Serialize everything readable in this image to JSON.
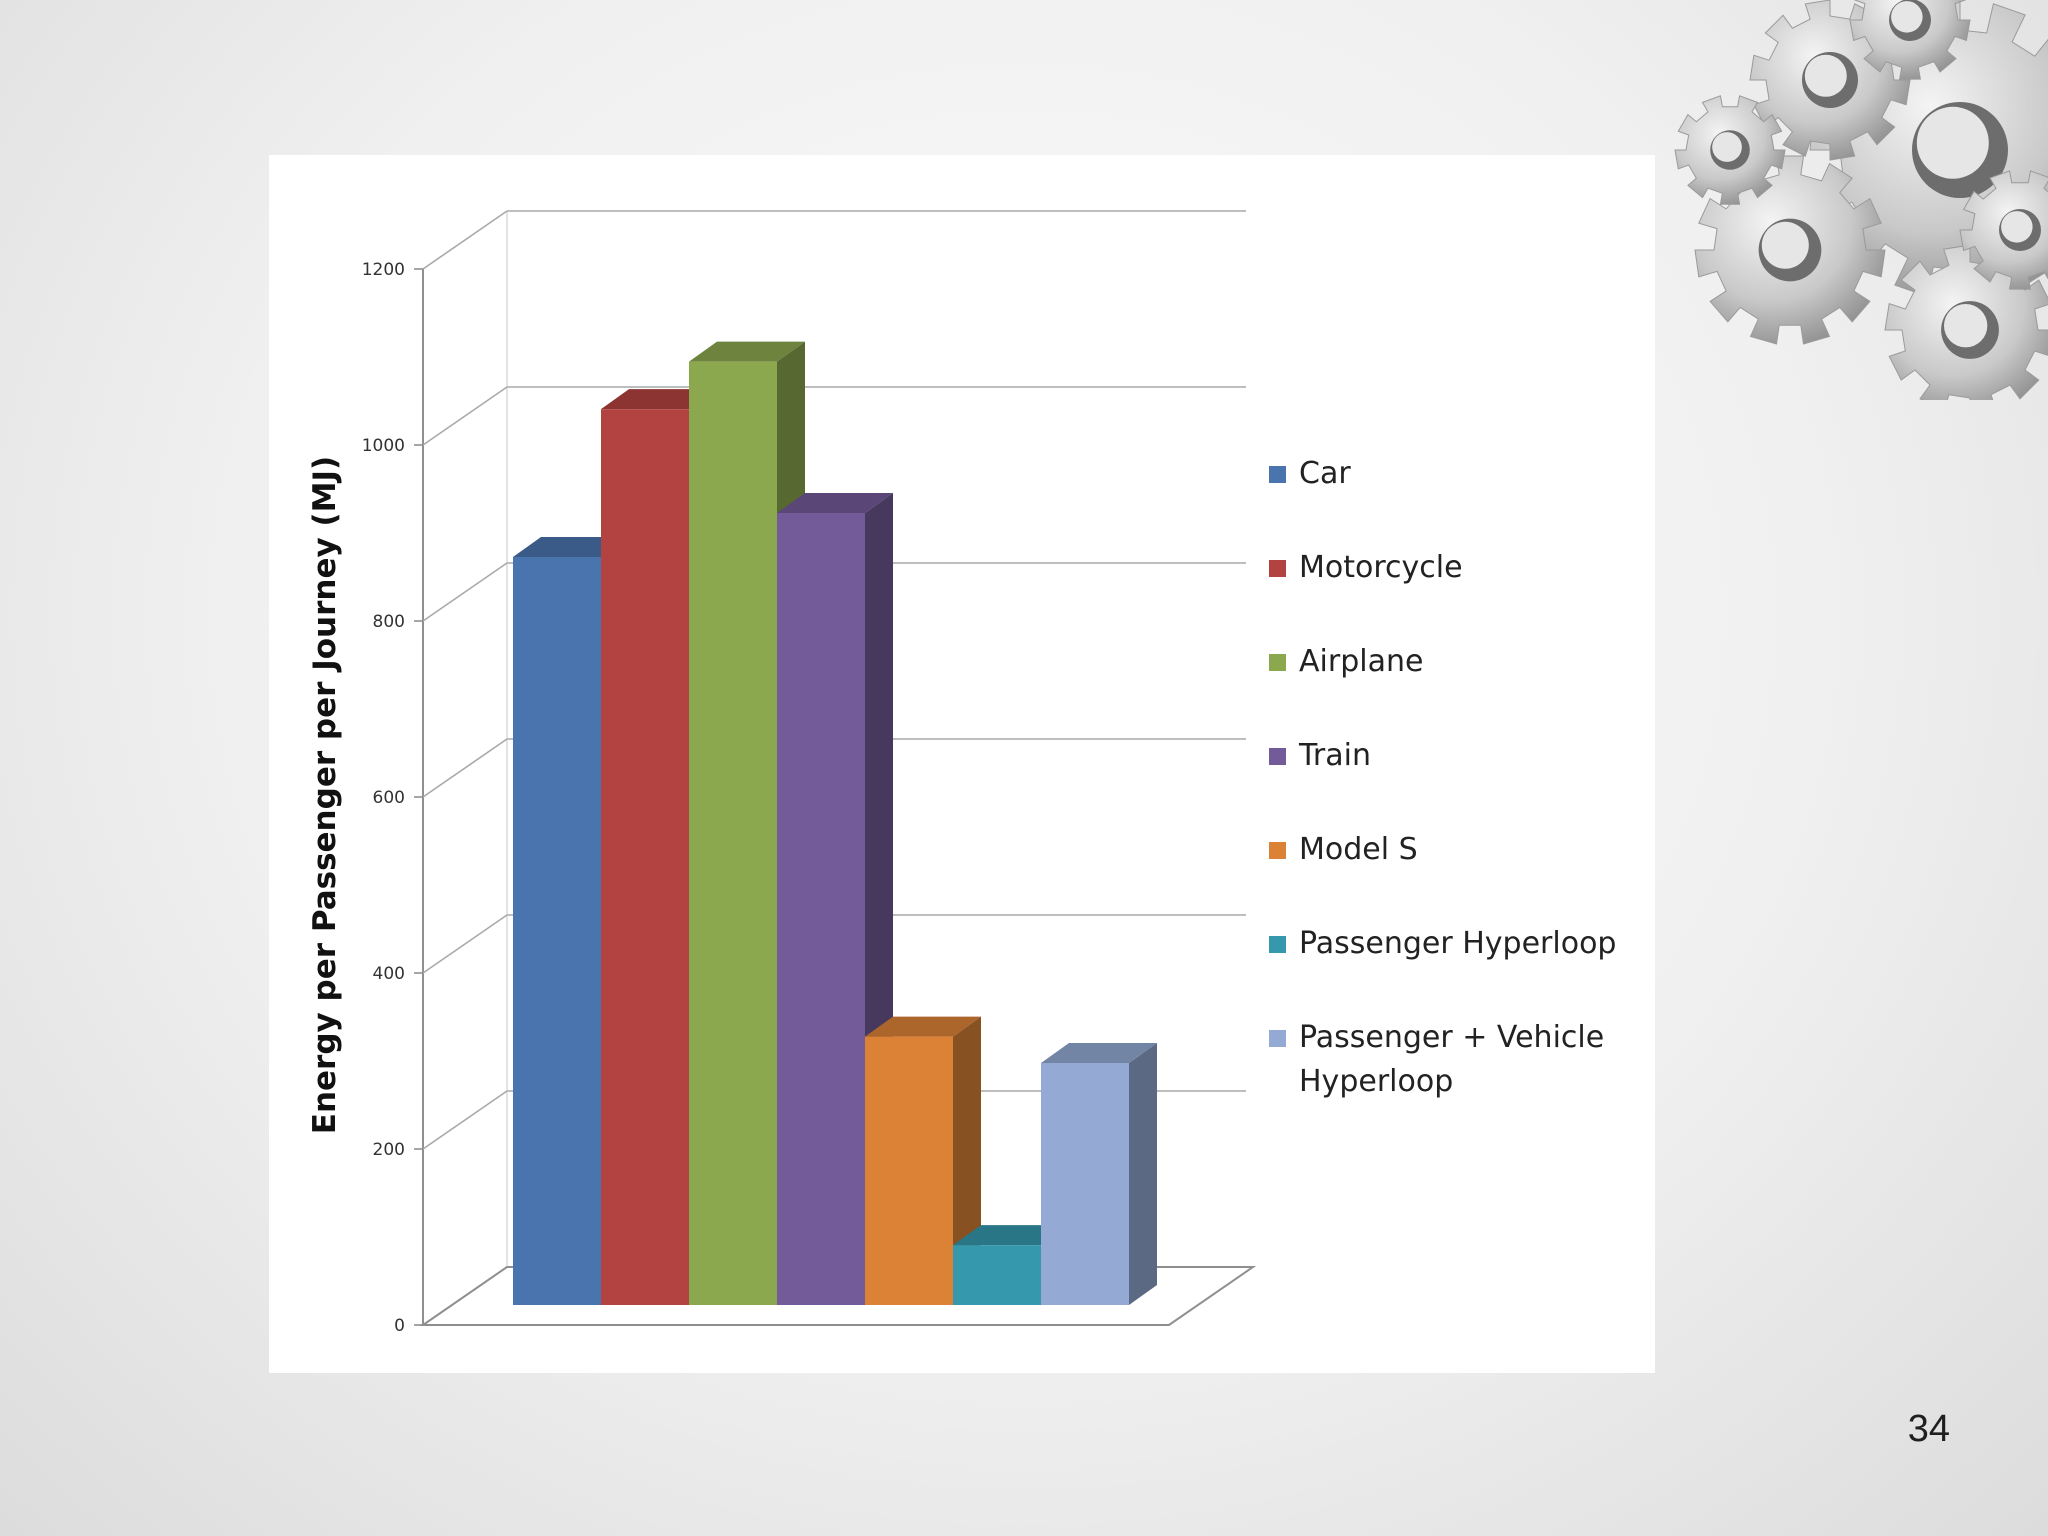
{
  "slide": {
    "page_number": "34"
  },
  "decoration": {
    "icon": "gears-icon"
  },
  "chart_data": {
    "type": "bar",
    "style": "3d-clustered-column",
    "title": "",
    "xlabel": "",
    "ylabel": "Energy per Passenger per Journey (MJ)",
    "ylim": [
      0,
      1200
    ],
    "yticks": [
      0,
      200,
      400,
      600,
      800,
      1000,
      1200
    ],
    "grid": true,
    "legend_position": "right",
    "series": [
      {
        "name": "Car",
        "value": 850,
        "color": "#4A74AE"
      },
      {
        "name": "Motorcycle",
        "value": 1018,
        "color": "#B24340"
      },
      {
        "name": "Airplane",
        "value": 1072,
        "color": "#8CA84F"
      },
      {
        "name": "Train",
        "value": 900,
        "color": "#735A98"
      },
      {
        "name": "Model S",
        "value": 305,
        "color": "#DC8237"
      },
      {
        "name": "Passenger Hyperloop",
        "value": 68,
        "color": "#3598AC"
      },
      {
        "name": "Passenger + Vehicle Hyperloop",
        "value": 275,
        "color": "#94AAD4"
      }
    ]
  }
}
